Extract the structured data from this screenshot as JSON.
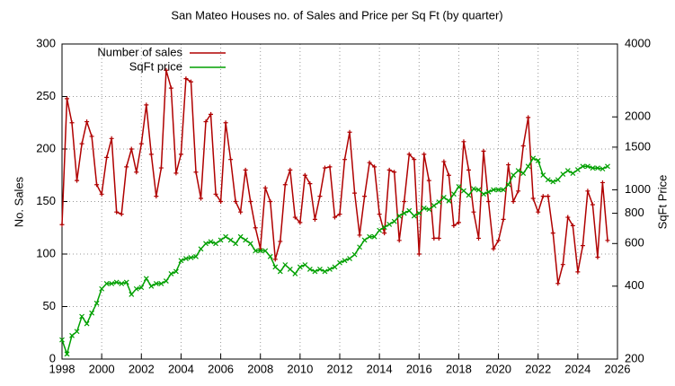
{
  "chart_data": {
    "type": "line",
    "title": "San Mateo Houses no. of Sales and Price per Sq Ft (by quarter)",
    "ylabel": "No. Sales",
    "y2label": "SqFt Price",
    "x": [
      1998,
      1998.25,
      1998.5,
      1998.75,
      1999,
      1999.25,
      1999.5,
      1999.75,
      2000,
      2000.25,
      2000.5,
      2000.75,
      2001,
      2001.25,
      2001.5,
      2001.75,
      2002,
      2002.25,
      2002.5,
      2002.75,
      2003,
      2003.25,
      2003.5,
      2003.75,
      2004,
      2004.25,
      2004.5,
      2004.75,
      2005,
      2005.25,
      2005.5,
      2005.75,
      2006,
      2006.25,
      2006.5,
      2006.75,
      2007,
      2007.25,
      2007.5,
      2007.75,
      2008,
      2008.25,
      2008.5,
      2008.75,
      2009,
      2009.25,
      2009.5,
      2009.75,
      2010,
      2010.25,
      2010.5,
      2010.75,
      2011,
      2011.25,
      2011.5,
      2011.75,
      2012,
      2012.25,
      2012.5,
      2012.75,
      2013,
      2013.25,
      2013.5,
      2013.75,
      2014,
      2014.25,
      2014.5,
      2014.75,
      2015,
      2015.25,
      2015.5,
      2015.75,
      2016,
      2016.25,
      2016.5,
      2016.75,
      2017,
      2017.25,
      2017.5,
      2017.75,
      2018,
      2018.25,
      2018.5,
      2018.75,
      2019,
      2019.25,
      2019.5,
      2019.75,
      2020,
      2020.25,
      2020.5,
      2020.75,
      2021,
      2021.25,
      2021.5,
      2021.75,
      2022,
      2022.25,
      2022.5,
      2022.75,
      2023,
      2023.25,
      2023.5,
      2023.75,
      2024,
      2024.25,
      2024.5,
      2024.75,
      2025,
      2025.25,
      2025.5
    ],
    "series": [
      {
        "name": "Number of sales",
        "color": "#b00000",
        "axis": "y",
        "marker": "plus",
        "values": [
          128,
          248,
          225,
          170,
          205,
          226,
          212,
          166,
          157,
          192,
          210,
          140,
          138,
          183,
          200,
          178,
          205,
          242,
          195,
          155,
          182,
          275,
          258,
          177,
          195,
          267,
          264,
          178,
          153,
          226,
          233,
          157,
          150,
          225,
          190,
          150,
          140,
          180,
          150,
          125,
          105,
          163,
          150,
          95,
          112,
          166,
          180,
          135,
          130,
          175,
          167,
          133,
          155,
          182,
          183,
          135,
          138,
          190,
          216,
          158,
          118,
          155,
          187,
          183,
          138,
          120,
          180,
          178,
          113,
          150,
          195,
          190,
          100,
          195,
          170,
          115,
          115,
          188,
          175,
          127,
          130,
          207,
          180,
          140,
          115,
          198,
          150,
          105,
          113,
          133,
          185,
          150,
          160,
          203,
          230,
          153,
          140,
          155,
          155,
          120,
          72,
          90,
          135,
          127,
          83,
          108,
          160,
          147,
          97,
          168,
          113
        ]
      },
      {
        "name": "SqFt price",
        "color": "#00a000",
        "axis": "y2",
        "marker": "cross",
        "values": [
          240,
          210,
          250,
          260,
          300,
          280,
          310,
          340,
          390,
          410,
          410,
          415,
          410,
          415,
          370,
          390,
          395,
          430,
          400,
          410,
          410,
          420,
          450,
          460,
          510,
          520,
          525,
          530,
          570,
          600,
          610,
          600,
          620,
          640,
          620,
          600,
          640,
          620,
          600,
          560,
          560,
          560,
          530,
          480,
          460,
          490,
          470,
          450,
          480,
          490,
          470,
          460,
          470,
          460,
          470,
          480,
          500,
          510,
          520,
          540,
          580,
          620,
          640,
          640,
          680,
          700,
          720,
          740,
          780,
          800,
          820,
          780,
          800,
          840,
          830,
          860,
          890,
          930,
          900,
          960,
          1030,
          990,
          950,
          1010,
          1000,
          960,
          980,
          1000,
          1000,
          1000,
          1050,
          1150,
          1200,
          1170,
          1250,
          1350,
          1320,
          1150,
          1100,
          1080,
          1100,
          1160,
          1200,
          1170,
          1210,
          1250,
          1250,
          1230,
          1230,
          1220,
          1250
        ]
      }
    ],
    "xlim": [
      1998,
      2026
    ],
    "xticks": [
      1998,
      2000,
      2002,
      2004,
      2006,
      2008,
      2010,
      2012,
      2014,
      2016,
      2018,
      2020,
      2022,
      2024,
      2026
    ],
    "ylim": [
      0,
      300
    ],
    "yticks": [
      0,
      50,
      100,
      150,
      200,
      250,
      300
    ],
    "y2lim": [
      200,
      4000
    ],
    "y2ticks": [
      200,
      400,
      600,
      800,
      1000,
      1500,
      2000,
      4000
    ],
    "y2log": true,
    "grid": true,
    "legend": "top-left"
  }
}
